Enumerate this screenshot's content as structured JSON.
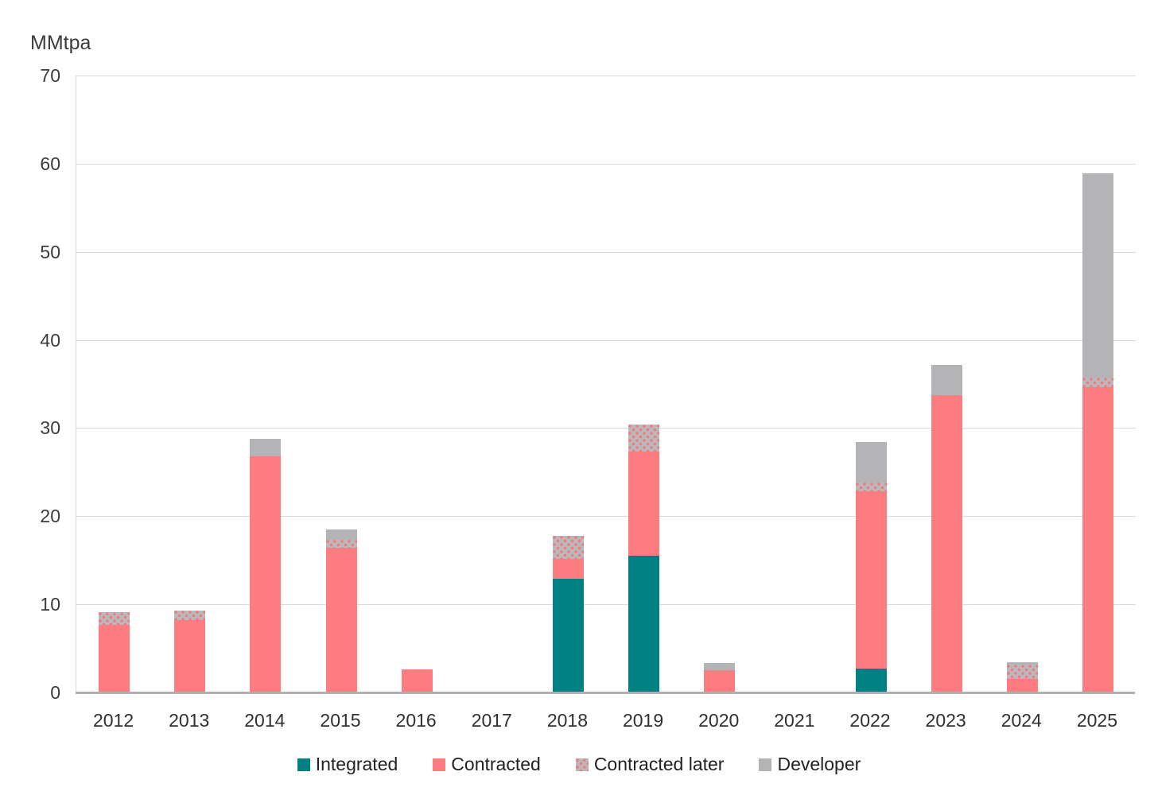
{
  "chart_data": {
    "type": "bar",
    "stacked": true,
    "title": "MMtpa",
    "xlabel": "",
    "ylabel": "MMtpa",
    "ylim": [
      0,
      70
    ],
    "yticks": [
      0,
      10,
      20,
      30,
      40,
      50,
      60,
      70
    ],
    "grid": "horizontal",
    "legend_position": "bottom",
    "categories": [
      "2012",
      "2013",
      "2014",
      "2015",
      "2016",
      "2017",
      "2018",
      "2019",
      "2020",
      "2021",
      "2022",
      "2023",
      "2024",
      "2025"
    ],
    "series": [
      {
        "name": "Integrated",
        "color": "#008083",
        "pattern": "solid",
        "values": [
          0,
          0,
          0,
          0,
          0,
          0,
          12.9,
          15.5,
          0,
          0,
          2.7,
          0,
          0,
          0
        ]
      },
      {
        "name": "Contracted",
        "color": "#FC7C80",
        "pattern": "solid",
        "values": [
          7.7,
          8.2,
          26.8,
          16.4,
          2.6,
          0,
          2.3,
          11.8,
          2.5,
          0,
          20.1,
          33.7,
          1.5,
          34.6
        ]
      },
      {
        "name": "Contracted later",
        "color": "#B9B9BC",
        "pattern": "dots",
        "values": [
          1.4,
          1.1,
          0,
          0.9,
          0,
          0,
          2.6,
          3.1,
          0,
          0,
          1.0,
          0,
          1.7,
          1.1
        ]
      },
      {
        "name": "Developer",
        "color": "#B4B4B7",
        "pattern": "solid",
        "values": [
          0,
          0,
          2.0,
          1.2,
          0,
          0,
          0,
          0,
          0.8,
          0,
          4.6,
          3.5,
          0.2,
          23.2
        ]
      }
    ],
    "totals": [
      9.1,
      9.3,
      28.8,
      18.5,
      2.6,
      0,
      17.8,
      30.4,
      3.3,
      0,
      28.4,
      37.2,
      3.4,
      58.9
    ]
  },
  "colors": {
    "gridline": "#d9d9d9",
    "axis_line": "#b0b0b0",
    "tick_text": "#3b3b3b",
    "background": "#ffffff"
  }
}
